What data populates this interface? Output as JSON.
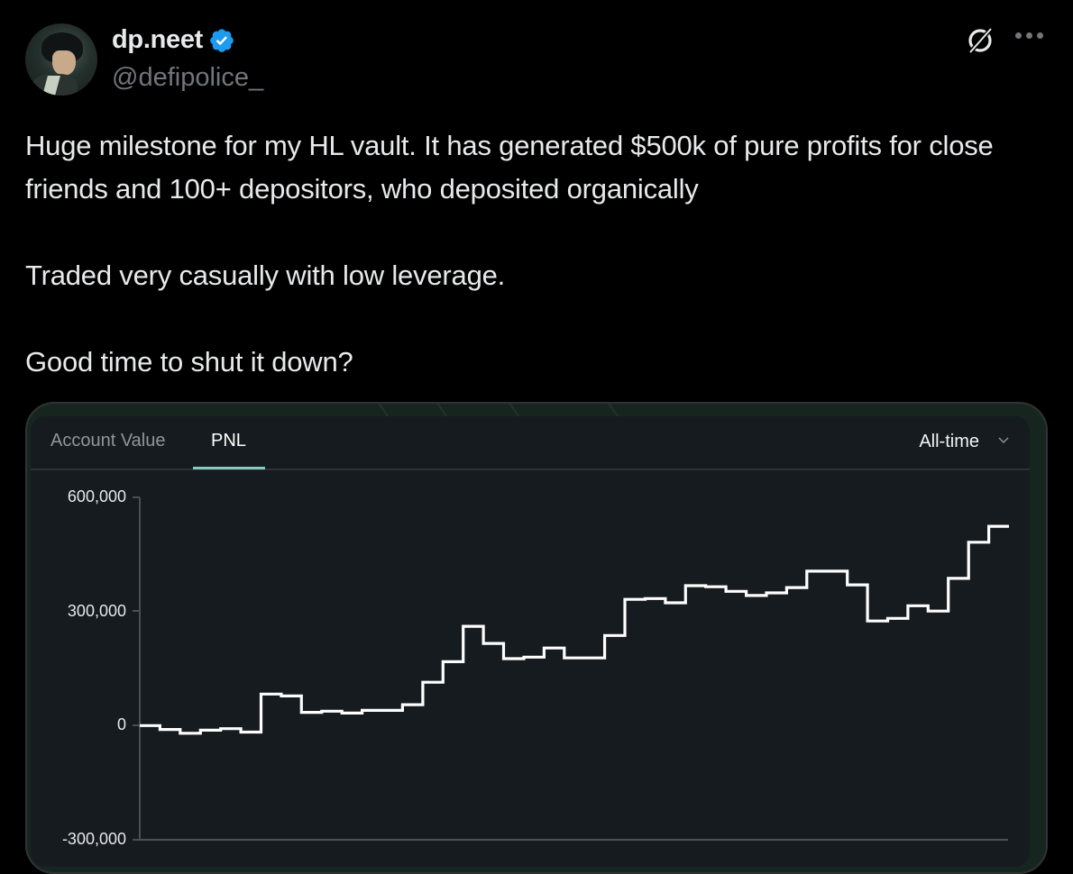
{
  "author": {
    "display_name": "dp.neet",
    "handle": "@defipolice_",
    "verified": true,
    "verified_color": "#1d9bf0",
    "avatar_icon": "avatar-anime-character"
  },
  "header_actions": {
    "grok_icon": "grok-icon",
    "more_icon": "more-horizontal-icon"
  },
  "tweet": {
    "paragraphs": [
      "Huge milestone for my HL vault. It has generated $500k of pure profits for close friends and 100+ depositors, who deposited organically",
      "Traded very casually with low leverage.",
      "Good time to shut it down?"
    ]
  },
  "media": {
    "tabs": [
      {
        "label": "Account Value",
        "active": false
      },
      {
        "label": "PNL",
        "active": true
      }
    ],
    "range_select": {
      "value": "All-time",
      "icon": "chevron-down-icon"
    },
    "accent_color": "#86c9bd"
  },
  "chart_data": {
    "type": "line",
    "subtype": "step",
    "title": "PNL",
    "xlabel": "",
    "ylabel": "",
    "ylim": [
      -300000,
      600000
    ],
    "yticks": [
      600000,
      300000,
      0,
      -300000
    ],
    "ytick_labels": [
      "600,000",
      "300,000",
      "0",
      "-300,000"
    ],
    "grid": false,
    "legend": null,
    "series": [
      {
        "name": "PNL (All-time)",
        "color": "#ffffff",
        "values": [
          0,
          -10000,
          -20000,
          -12000,
          -8000,
          -17000,
          83000,
          78000,
          35000,
          38000,
          33000,
          40000,
          40000,
          55000,
          114000,
          168000,
          261000,
          216000,
          176000,
          180000,
          204000,
          178000,
          178000,
          237000,
          332000,
          334000,
          323000,
          368000,
          365000,
          353000,
          342000,
          349000,
          363000,
          406000,
          406000,
          370000,
          275000,
          282000,
          315000,
          301000,
          387000,
          482000,
          524000
        ]
      }
    ]
  }
}
